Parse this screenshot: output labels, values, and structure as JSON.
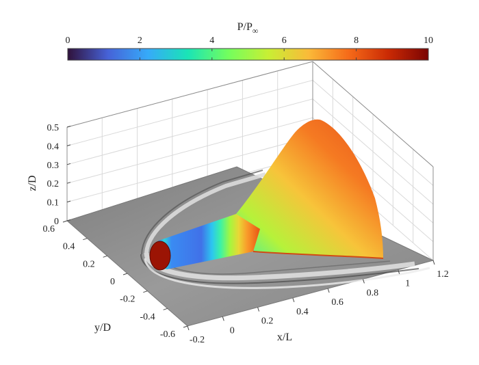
{
  "chart_data": {
    "type": "surface",
    "colorbar": {
      "label": "P/P",
      "label_subscript": "∞",
      "ticks": [
        "0",
        "2",
        "4",
        "6",
        "8",
        "10"
      ],
      "range": [
        0,
        10
      ],
      "colormap": [
        "#30123b",
        "#4662d7",
        "#36aaf9",
        "#1ae4b6",
        "#72fe5e",
        "#c8ef34",
        "#faba39",
        "#f66b19",
        "#ca2a04",
        "#7a0403"
      ]
    },
    "axes": {
      "x": {
        "label": "x/L",
        "range": [
          -0.2,
          1.2
        ],
        "ticks": [
          "-0.2",
          "0",
          "0.2",
          "0.4",
          "0.6",
          "0.8",
          "1",
          "1.2"
        ]
      },
      "y": {
        "label": "y/D",
        "range": [
          -0.6,
          0.6
        ],
        "ticks": [
          "-0.6",
          "-0.4",
          "-0.2",
          "0",
          "0.2",
          "0.4",
          "0.6"
        ]
      },
      "z": {
        "label": "z/D",
        "range": [
          0,
          0.5
        ],
        "ticks": [
          "0",
          "0.1",
          "0.2",
          "0.3",
          "0.4",
          "0.5"
        ]
      }
    },
    "grid": true,
    "surface_pressure": [
      {
        "x": 0.0,
        "value": 9.7
      },
      {
        "x": 0.05,
        "value": 4.4
      },
      {
        "x": 0.15,
        "value": 2.6
      },
      {
        "x": 0.35,
        "value": 2.4
      },
      {
        "x": 0.55,
        "value": 4.0
      },
      {
        "x": 0.65,
        "value": 5.0
      },
      {
        "x": 0.8,
        "value": 7.2
      },
      {
        "x": 1.0,
        "value": 8.4
      }
    ],
    "floor": "gray-shaded schlieren (shock waves)"
  }
}
